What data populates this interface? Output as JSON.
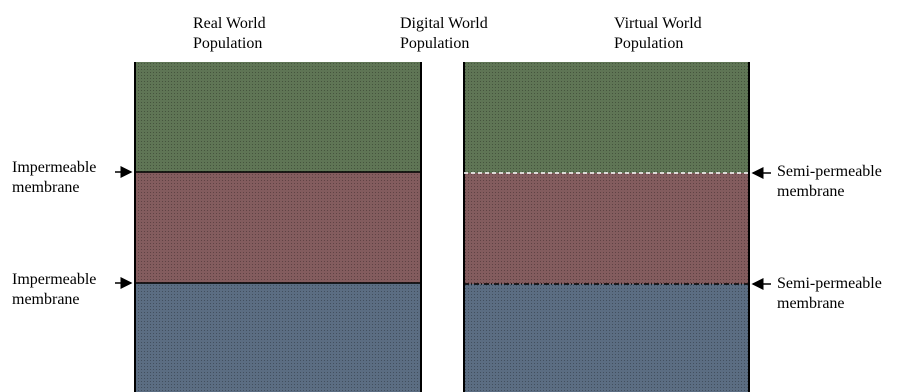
{
  "columns": {
    "real_world": "Real World\nPopulation",
    "digital_world": "Digital World\nPopulation",
    "virtual_world": "Virtual World\nPopulation"
  },
  "membranes": {
    "left_top": "Impermeable\nmembrane",
    "left_bottom": "Impermeable\nmembrane",
    "right_top": "Semi-permeable\nmembrane",
    "right_bottom": "Semi-permeable\nmembrane"
  },
  "colors": {
    "green_band": "#5f7555",
    "red_band": "#835c5e",
    "blue_band": "#5b6d82",
    "border": "#000000"
  }
}
